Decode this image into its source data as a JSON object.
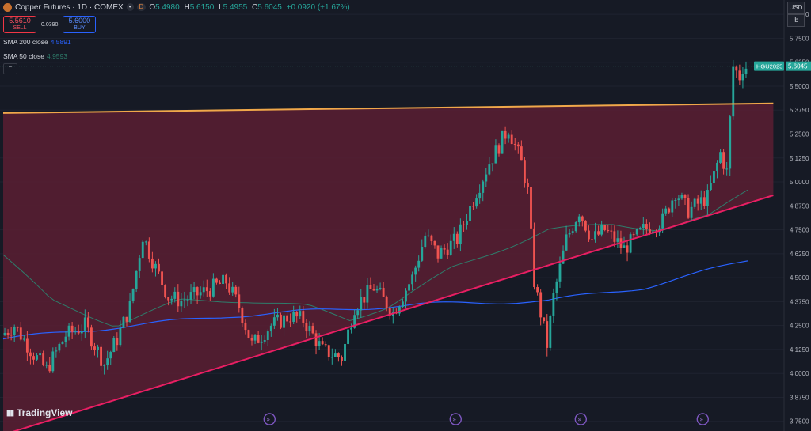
{
  "header": {
    "title": "Copper Futures · 1D · COMEX",
    "badge_dot": "•",
    "badge_d": "D",
    "open_label": "O",
    "open": "5.4980",
    "high_label": "H",
    "high": "5.6150",
    "low_label": "L",
    "low": "5.4955",
    "close_label": "C",
    "close": "5.6045",
    "change": "+0.0920 (+1.67%)"
  },
  "trade": {
    "sell_price": "5.5610",
    "sell_label": "SELL",
    "spread": "0.0390",
    "buy_price": "5.6000",
    "buy_label": "BUY"
  },
  "indicators": [
    {
      "label": "SMA 200 close",
      "value": "4.5891",
      "color": "#2962ff"
    },
    {
      "label": "SMA 50 close",
      "value": "4.9593",
      "color": "#2e7d6b"
    }
  ],
  "axis_controls": {
    "currency": "USD",
    "unit": "lb"
  },
  "brand": "TradingView",
  "colors": {
    "background": "#161a25",
    "up": "#26a69a",
    "down": "#ef5350",
    "resistance": "#f0a84a",
    "support": "#e91e63",
    "zone_fill": "#5a1f33",
    "sma200": "#2962ff",
    "sma50": "#2e7d6b"
  },
  "chart_data": {
    "type": "candlestick",
    "symbol_label": "HGU2025",
    "last_price": "5.6045",
    "y_ticks": [
      "5.8750",
      "5.7500",
      "5.6250",
      "5.5000",
      "5.3750",
      "5.2500",
      "5.1250",
      "5.0000",
      "4.8750",
      "4.7500",
      "4.6250",
      "4.5000",
      "4.3750",
      "4.2500",
      "4.1250",
      "4.0000",
      "3.8750",
      "3.7500"
    ],
    "ylim": [
      3.72,
      5.95
    ],
    "n_bars": 232,
    "anchors": [
      [
        0,
        4.2
      ],
      [
        4,
        4.25
      ],
      [
        10,
        4.1
      ],
      [
        14,
        4.02
      ],
      [
        20,
        4.2
      ],
      [
        26,
        4.25
      ],
      [
        32,
        4.05
      ],
      [
        36,
        4.18
      ],
      [
        40,
        4.35
      ],
      [
        44,
        4.72
      ],
      [
        48,
        4.55
      ],
      [
        52,
        4.4
      ],
      [
        56,
        4.38
      ],
      [
        62,
        4.42
      ],
      [
        70,
        4.48
      ],
      [
        74,
        4.35
      ],
      [
        78,
        4.15
      ],
      [
        84,
        4.25
      ],
      [
        90,
        4.3
      ],
      [
        94,
        4.28
      ],
      [
        100,
        4.12
      ],
      [
        106,
        4.08
      ],
      [
        110,
        4.35
      ],
      [
        116,
        4.45
      ],
      [
        122,
        4.32
      ],
      [
        128,
        4.5
      ],
      [
        132,
        4.72
      ],
      [
        136,
        4.62
      ],
      [
        142,
        4.7
      ],
      [
        148,
        4.95
      ],
      [
        152,
        5.1
      ],
      [
        158,
        5.28
      ],
      [
        162,
        5.1
      ],
      [
        164,
        4.95
      ],
      [
        166,
        4.48
      ],
      [
        170,
        4.15
      ],
      [
        172,
        4.4
      ],
      [
        176,
        4.7
      ],
      [
        180,
        4.85
      ],
      [
        184,
        4.7
      ],
      [
        188,
        4.75
      ],
      [
        194,
        4.65
      ],
      [
        200,
        4.75
      ],
      [
        206,
        4.8
      ],
      [
        210,
        4.95
      ],
      [
        214,
        4.85
      ],
      [
        220,
        4.92
      ],
      [
        224,
        5.15
      ],
      [
        226,
        5.05
      ],
      [
        228,
        5.6
      ],
      [
        230,
        5.55
      ],
      [
        231,
        5.6
      ]
    ],
    "sma200": [
      [
        0,
        4.18
      ],
      [
        40,
        4.25
      ],
      [
        70,
        4.3
      ],
      [
        100,
        4.33
      ],
      [
        130,
        4.36
      ],
      [
        170,
        4.38
      ],
      [
        200,
        4.45
      ],
      [
        232,
        4.59
      ]
    ],
    "sma50": [
      [
        0,
        4.62
      ],
      [
        15,
        4.38
      ],
      [
        35,
        4.25
      ],
      [
        55,
        4.38
      ],
      [
        75,
        4.38
      ],
      [
        95,
        4.35
      ],
      [
        108,
        4.28
      ],
      [
        120,
        4.35
      ],
      [
        140,
        4.55
      ],
      [
        160,
        4.68
      ],
      [
        170,
        4.75
      ],
      [
        190,
        4.78
      ],
      [
        205,
        4.75
      ],
      [
        220,
        4.82
      ],
      [
        232,
        4.96
      ]
    ],
    "resistance_line": [
      [
        0,
        5.36
      ],
      [
        240,
        5.41
      ]
    ],
    "support_line": [
      [
        0,
        3.68
      ],
      [
        240,
        4.93
      ]
    ],
    "event_markers_bar": [
      83,
      141,
      180,
      218
    ]
  }
}
